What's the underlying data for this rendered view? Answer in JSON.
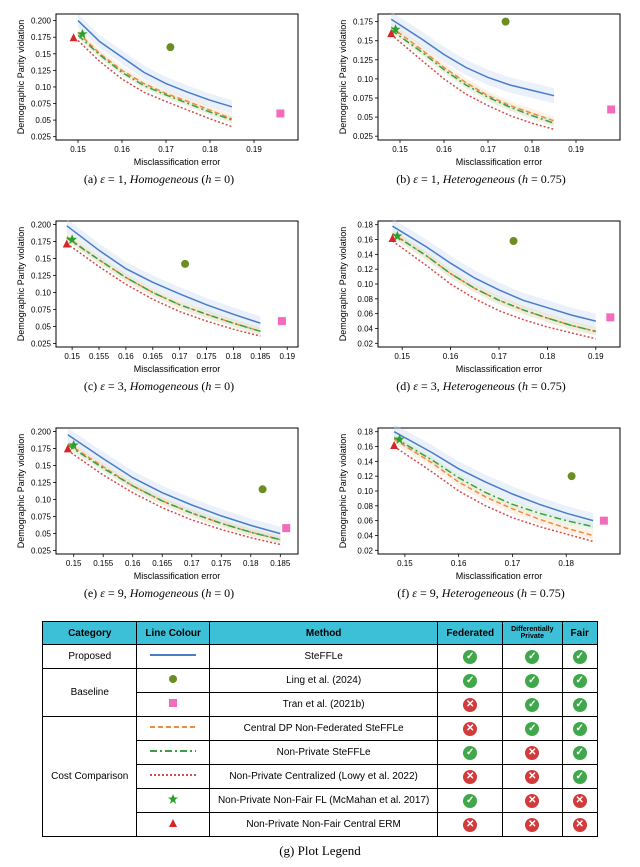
{
  "axis": {
    "xlabel": "Misclassification error",
    "ylabel": "Demographic Parity violation"
  },
  "colors": {
    "blue": "#4a7dc9",
    "blue_fill": "#c3d6f2",
    "orange": "#f08a3c",
    "orange_fill": "#fbd8bb",
    "green": "#3e9e46",
    "green_fill": "#c8e8c8",
    "red": "#d94a4a",
    "magenta": "#f36bbb",
    "olive": "#6b8e23",
    "star": "#2aa02a",
    "triangle": "#d62728",
    "grid": "#e6e6e6",
    "border": "#000000",
    "bg": "#ffffff",
    "text": "#000000"
  },
  "style": {
    "tick_font": 8,
    "caption_font": 12,
    "label_font": 9,
    "line_width": 1.5,
    "band_opacity": 0.35,
    "marker_size": 6
  },
  "charts": [
    {
      "id": "a",
      "caption_prefix": "(a) ",
      "eps": "1",
      "setting": "Homogeneous",
      "h": "0",
      "xrange": [
        0.145,
        0.2
      ],
      "xticks": [
        0.15,
        0.16,
        0.17,
        0.18,
        0.19
      ],
      "yrange": [
        0.02,
        0.21
      ],
      "yticks": [
        0.025,
        0.05,
        0.075,
        0.1,
        0.125,
        0.15,
        0.175,
        0.2
      ],
      "series": {
        "blue": {
          "x": [
            0.15,
            0.155,
            0.16,
            0.165,
            0.17,
            0.175,
            0.18,
            0.185
          ],
          "y": [
            0.2,
            0.168,
            0.145,
            0.122,
            0.105,
            0.092,
            0.08,
            0.07
          ]
        },
        "orange": {
          "x": [
            0.15,
            0.155,
            0.16,
            0.165,
            0.17,
            0.175,
            0.18,
            0.185
          ],
          "y": [
            0.182,
            0.15,
            0.125,
            0.105,
            0.09,
            0.078,
            0.065,
            0.052
          ]
        },
        "green": {
          "x": [
            0.15,
            0.155,
            0.16,
            0.165,
            0.17,
            0.175,
            0.18,
            0.185
          ],
          "y": [
            0.178,
            0.148,
            0.122,
            0.102,
            0.088,
            0.075,
            0.062,
            0.05
          ]
        },
        "red": {
          "x": [
            0.15,
            0.155,
            0.16,
            0.165,
            0.17,
            0.175,
            0.18,
            0.185
          ],
          "y": [
            0.17,
            0.138,
            0.112,
            0.092,
            0.078,
            0.065,
            0.052,
            0.04
          ]
        }
      },
      "markers": {
        "olive": {
          "x": 0.171,
          "y": 0.16
        },
        "magenta": {
          "x": 0.196,
          "y": 0.06
        },
        "star": {
          "x": 0.151,
          "y": 0.18
        },
        "triangle": {
          "x": 0.149,
          "y": 0.175
        }
      }
    },
    {
      "id": "b",
      "caption_prefix": "(b) ",
      "eps": "1",
      "setting": "Heterogeneous",
      "h": "0.75",
      "xrange": [
        0.145,
        0.2
      ],
      "xticks": [
        0.15,
        0.16,
        0.17,
        0.18,
        0.19
      ],
      "yrange": [
        0.02,
        0.185
      ],
      "yticks": [
        0.025,
        0.05,
        0.075,
        0.1,
        0.125,
        0.15,
        0.175
      ],
      "series": {
        "blue": {
          "x": [
            0.148,
            0.155,
            0.16,
            0.165,
            0.17,
            0.175,
            0.18,
            0.185
          ],
          "y": [
            0.178,
            0.152,
            0.132,
            0.115,
            0.102,
            0.092,
            0.085,
            0.078
          ]
        },
        "orange": {
          "x": [
            0.148,
            0.155,
            0.16,
            0.165,
            0.17,
            0.175,
            0.18,
            0.185
          ],
          "y": [
            0.168,
            0.138,
            0.115,
            0.095,
            0.078,
            0.065,
            0.055,
            0.045
          ]
        },
        "green": {
          "x": [
            0.148,
            0.155,
            0.16,
            0.165,
            0.17,
            0.175,
            0.18,
            0.185
          ],
          "y": [
            0.164,
            0.135,
            0.112,
            0.092,
            0.076,
            0.063,
            0.052,
            0.042
          ]
        },
        "red": {
          "x": [
            0.148,
            0.155,
            0.16,
            0.165,
            0.17,
            0.175,
            0.18,
            0.185
          ],
          "y": [
            0.158,
            0.124,
            0.1,
            0.08,
            0.065,
            0.052,
            0.042,
            0.034
          ]
        }
      },
      "markers": {
        "olive": {
          "x": 0.174,
          "y": 0.175
        },
        "magenta": {
          "x": 0.198,
          "y": 0.06
        },
        "star": {
          "x": 0.149,
          "y": 0.165
        },
        "triangle": {
          "x": 0.148,
          "y": 0.16
        }
      }
    },
    {
      "id": "c",
      "caption_prefix": "(c) ",
      "eps": "3",
      "setting": "Homogeneous",
      "h": "0",
      "xrange": [
        0.147,
        0.192
      ],
      "xticks": [
        0.15,
        0.155,
        0.16,
        0.165,
        0.17,
        0.175,
        0.18,
        0.185,
        0.19
      ],
      "yrange": [
        0.02,
        0.205
      ],
      "yticks": [
        0.025,
        0.05,
        0.075,
        0.1,
        0.125,
        0.15,
        0.175,
        0.2
      ],
      "series": {
        "blue": {
          "x": [
            0.149,
            0.155,
            0.16,
            0.165,
            0.17,
            0.175,
            0.18,
            0.185
          ],
          "y": [
            0.198,
            0.162,
            0.135,
            0.115,
            0.098,
            0.082,
            0.068,
            0.055
          ]
        },
        "orange": {
          "x": [
            0.149,
            0.155,
            0.16,
            0.165,
            0.17,
            0.175,
            0.18,
            0.185
          ],
          "y": [
            0.182,
            0.148,
            0.122,
            0.1,
            0.082,
            0.068,
            0.055,
            0.043
          ]
        },
        "green": {
          "x": [
            0.149,
            0.155,
            0.16,
            0.165,
            0.17,
            0.175,
            0.18,
            0.185
          ],
          "y": [
            0.18,
            0.148,
            0.122,
            0.1,
            0.082,
            0.068,
            0.055,
            0.043
          ]
        },
        "red": {
          "x": [
            0.149,
            0.155,
            0.16,
            0.165,
            0.17,
            0.175,
            0.18,
            0.185
          ],
          "y": [
            0.172,
            0.138,
            0.112,
            0.09,
            0.072,
            0.058,
            0.046,
            0.036
          ]
        }
      },
      "markers": {
        "olive": {
          "x": 0.171,
          "y": 0.142
        },
        "magenta": {
          "x": 0.189,
          "y": 0.058
        },
        "star": {
          "x": 0.15,
          "y": 0.178
        },
        "triangle": {
          "x": 0.149,
          "y": 0.172
        }
      }
    },
    {
      "id": "d",
      "caption_prefix": "(d) ",
      "eps": "3",
      "setting": "Heterogeneous",
      "h": "0.75",
      "xrange": [
        0.145,
        0.195
      ],
      "xticks": [
        0.15,
        0.16,
        0.17,
        0.18,
        0.19
      ],
      "yrange": [
        0.015,
        0.185
      ],
      "yticks": [
        0.02,
        0.04,
        0.06,
        0.08,
        0.1,
        0.12,
        0.14,
        0.16,
        0.18
      ],
      "series": {
        "blue": {
          "x": [
            0.148,
            0.155,
            0.16,
            0.165,
            0.17,
            0.175,
            0.18,
            0.185,
            0.19
          ],
          "y": [
            0.178,
            0.15,
            0.128,
            0.108,
            0.092,
            0.078,
            0.068,
            0.058,
            0.05
          ]
        },
        "orange": {
          "x": [
            0.148,
            0.155,
            0.16,
            0.165,
            0.17,
            0.175,
            0.18,
            0.185,
            0.19
          ],
          "y": [
            0.168,
            0.138,
            0.114,
            0.094,
            0.078,
            0.065,
            0.054,
            0.044,
            0.036
          ]
        },
        "green": {
          "x": [
            0.148,
            0.155,
            0.16,
            0.165,
            0.17,
            0.175,
            0.18,
            0.185,
            0.19
          ],
          "y": [
            0.168,
            0.138,
            0.114,
            0.094,
            0.078,
            0.065,
            0.054,
            0.044,
            0.036
          ]
        },
        "red": {
          "x": [
            0.148,
            0.155,
            0.16,
            0.165,
            0.17,
            0.175,
            0.18,
            0.185,
            0.19
          ],
          "y": [
            0.158,
            0.125,
            0.1,
            0.08,
            0.064,
            0.052,
            0.042,
            0.034,
            0.026
          ]
        }
      },
      "markers": {
        "olive": {
          "x": 0.173,
          "y": 0.158
        },
        "magenta": {
          "x": 0.193,
          "y": 0.055
        },
        "star": {
          "x": 0.149,
          "y": 0.165
        },
        "triangle": {
          "x": 0.148,
          "y": 0.162
        }
      }
    },
    {
      "id": "e",
      "caption_prefix": "(e) ",
      "eps": "9",
      "setting": "Homogeneous",
      "h": "0",
      "xrange": [
        0.147,
        0.188
      ],
      "xticks": [
        0.15,
        0.155,
        0.16,
        0.165,
        0.17,
        0.175,
        0.18,
        0.185
      ],
      "yrange": [
        0.02,
        0.205
      ],
      "yticks": [
        0.025,
        0.05,
        0.075,
        0.1,
        0.125,
        0.15,
        0.175,
        0.2
      ],
      "series": {
        "blue": {
          "x": [
            0.149,
            0.155,
            0.16,
            0.165,
            0.17,
            0.175,
            0.18,
            0.185
          ],
          "y": [
            0.195,
            0.16,
            0.132,
            0.11,
            0.092,
            0.076,
            0.062,
            0.05
          ]
        },
        "orange": {
          "x": [
            0.149,
            0.155,
            0.16,
            0.165,
            0.17,
            0.175,
            0.18,
            0.185
          ],
          "y": [
            0.182,
            0.148,
            0.12,
            0.098,
            0.08,
            0.065,
            0.052,
            0.041
          ]
        },
        "green": {
          "x": [
            0.149,
            0.155,
            0.16,
            0.165,
            0.17,
            0.175,
            0.18,
            0.185
          ],
          "y": [
            0.18,
            0.146,
            0.12,
            0.098,
            0.08,
            0.065,
            0.052,
            0.041
          ]
        },
        "red": {
          "x": [
            0.149,
            0.155,
            0.16,
            0.165,
            0.17,
            0.175,
            0.18,
            0.185
          ],
          "y": [
            0.172,
            0.136,
            0.11,
            0.088,
            0.07,
            0.056,
            0.044,
            0.034
          ]
        }
      },
      "markers": {
        "olive": {
          "x": 0.182,
          "y": 0.115
        },
        "magenta": {
          "x": 0.186,
          "y": 0.058
        },
        "star": {
          "x": 0.15,
          "y": 0.18
        },
        "triangle": {
          "x": 0.149,
          "y": 0.175
        }
      }
    },
    {
      "id": "f",
      "caption_prefix": "(f) ",
      "eps": "9",
      "setting": "Heterogeneous",
      "h": "0.75",
      "xrange": [
        0.145,
        0.19
      ],
      "xticks": [
        0.15,
        0.16,
        0.17,
        0.18
      ],
      "yrange": [
        0.015,
        0.185
      ],
      "yticks": [
        0.02,
        0.04,
        0.06,
        0.08,
        0.1,
        0.12,
        0.14,
        0.16,
        0.18
      ],
      "series": {
        "blue": {
          "x": [
            0.148,
            0.155,
            0.16,
            0.165,
            0.17,
            0.175,
            0.18,
            0.185
          ],
          "y": [
            0.18,
            0.152,
            0.13,
            0.112,
            0.096,
            0.082,
            0.07,
            0.06
          ]
        },
        "orange": {
          "x": [
            0.148,
            0.155,
            0.16,
            0.165,
            0.17,
            0.175,
            0.18,
            0.185
          ],
          "y": [
            0.17,
            0.138,
            0.112,
            0.092,
            0.076,
            0.062,
            0.05,
            0.04
          ]
        },
        "green": {
          "x": [
            0.148,
            0.155,
            0.16,
            0.165,
            0.17,
            0.175,
            0.18,
            0.185
          ],
          "y": [
            0.172,
            0.142,
            0.118,
            0.098,
            0.082,
            0.07,
            0.06,
            0.052
          ]
        },
        "red": {
          "x": [
            0.148,
            0.155,
            0.16,
            0.165,
            0.17,
            0.175,
            0.18,
            0.185
          ],
          "y": [
            0.16,
            0.126,
            0.1,
            0.08,
            0.064,
            0.052,
            0.042,
            0.032
          ]
        }
      },
      "markers": {
        "olive": {
          "x": 0.181,
          "y": 0.12
        },
        "magenta": {
          "x": 0.187,
          "y": 0.06
        },
        "star": {
          "x": 0.149,
          "y": 0.17
        },
        "triangle": {
          "x": 0.148,
          "y": 0.162
        }
      }
    }
  ],
  "legend": {
    "headers": [
      "Category",
      "Line Colour",
      "Method",
      "Federated",
      "Differentially Private",
      "Fair"
    ],
    "header_small": "Differentially\nPrivate",
    "rows": [
      {
        "category": "Proposed",
        "rowspan": 1,
        "swatch": "blue-line",
        "method": "SteFFLe",
        "flags": [
          "yes",
          "yes",
          "yes"
        ]
      },
      {
        "category": "Baseline",
        "rowspan": 2,
        "swatch": "olive-dot",
        "method": "Ling et al. (2024)",
        "flags": [
          "yes",
          "yes",
          "yes"
        ]
      },
      {
        "category": "",
        "swatch": "magenta-sq",
        "method": "Tran et al. (2021b)",
        "flags": [
          "no",
          "yes",
          "yes"
        ]
      },
      {
        "category": "Cost Comparison",
        "rowspan": 5,
        "swatch": "orange-dash",
        "method": "Central DP Non-Federated SteFFLe",
        "flags": [
          "no",
          "yes",
          "yes"
        ]
      },
      {
        "category": "",
        "swatch": "green-dashdot",
        "method": "Non-Private SteFFLe",
        "flags": [
          "yes",
          "no",
          "yes"
        ]
      },
      {
        "category": "",
        "swatch": "red-dot",
        "method": "Non-Private Centralized (Lowy et al. 2022)",
        "flags": [
          "no",
          "no",
          "yes"
        ]
      },
      {
        "category": "",
        "swatch": "green-star",
        "method": "Non-Private Non-Fair FL (McMahan et al. 2017)",
        "flags": [
          "yes",
          "no",
          "no"
        ]
      },
      {
        "category": "",
        "swatch": "red-tri",
        "method": "Non-Private Non-Fair Central ERM",
        "flags": [
          "no",
          "no",
          "no"
        ]
      }
    ],
    "caption": "(g) Plot Legend"
  }
}
